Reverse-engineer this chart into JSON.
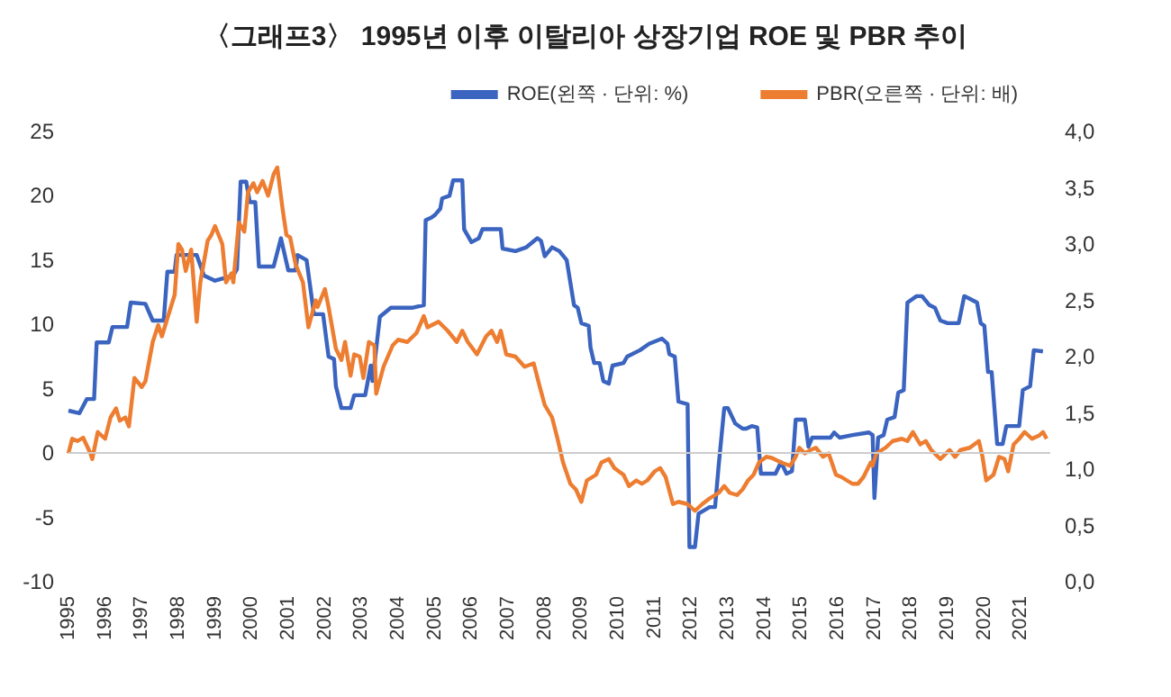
{
  "chart_data": {
    "type": "line",
    "title": "〈그래프3〉 1995년 이후 이탈리아 상장기업 ROE 및 PBR 추이",
    "xlim": [
      1995,
      2021.8
    ],
    "xticks": [
      1995,
      1996,
      1997,
      1998,
      1999,
      2000,
      2001,
      2002,
      2003,
      2004,
      2005,
      2006,
      2007,
      2008,
      2009,
      2010,
      2011,
      2012,
      2013,
      2014,
      2015,
      2016,
      2017,
      2018,
      2019,
      2020,
      2021
    ],
    "ylim": [
      -10,
      25
    ],
    "yticks": [
      -10,
      -5,
      0,
      5,
      10,
      15,
      20,
      25
    ],
    "y2lim": [
      0,
      4
    ],
    "y2ticks": [
      {
        "value": 0,
        "label": "0,0"
      },
      {
        "value": 0.5,
        "label": "0,5"
      },
      {
        "value": 1,
        "label": "1,0"
      },
      {
        "value": 1.5,
        "label": "1,5"
      },
      {
        "value": 2,
        "label": "2,0"
      },
      {
        "value": 2.5,
        "label": "2,5"
      },
      {
        "value": 3,
        "label": "3,0"
      },
      {
        "value": 3.5,
        "label": "3,5"
      },
      {
        "value": 4,
        "label": "4,0"
      }
    ],
    "grid": false,
    "legend": "top right",
    "marker": "none",
    "line_style": "solid",
    "ref_lines": [
      {
        "axis": "y",
        "value": 0,
        "color": "#cccccc"
      }
    ],
    "series": [
      {
        "name": "ROE(왼쪽 · 단위: %)",
        "color": "#3a64c0",
        "x": [
          1995.0,
          1995.3,
          1995.5,
          1995.7,
          1995.77,
          1996.1,
          1996.2,
          1996.6,
          1996.7,
          1997.1,
          1997.3,
          1997.6,
          1997.7,
          1997.9,
          1997.95,
          1998.5,
          1998.7,
          1999.0,
          1999.5,
          1999.6,
          1999.7,
          1999.85,
          1999.95,
          2000.1,
          2000.2,
          2000.6,
          2000.8,
          2001.0,
          2001.2,
          2001.25,
          2001.5,
          2001.7,
          2001.95,
          2002.1,
          2002.25,
          2002.3,
          2002.45,
          2002.7,
          2002.8,
          2003.1,
          2003.25,
          2003.3,
          2003.5,
          2003.8,
          2004.4,
          2004.7,
          2004.75,
          2004.9,
          2005.0,
          2005.15,
          2005.2,
          2005.4,
          2005.5,
          2005.75,
          2005.8,
          2006.0,
          2006.2,
          2006.3,
          2006.8,
          2006.85,
          2007.2,
          2007.5,
          2007.8,
          2007.9,
          2008.0,
          2008.2,
          2008.4,
          2008.6,
          2008.8,
          2008.9,
          2009.0,
          2009.2,
          2009.25,
          2009.35,
          2009.5,
          2009.6,
          2009.75,
          2009.85,
          2010.15,
          2010.25,
          2010.6,
          2010.85,
          2011.2,
          2011.35,
          2011.4,
          2011.55,
          2011.65,
          2011.9,
          2011.95,
          2012.1,
          2012.2,
          2012.5,
          2012.65,
          2012.75,
          2012.9,
          2013.0,
          2013.2,
          2013.4,
          2013.5,
          2013.65,
          2013.8,
          2013.9,
          2014.3,
          2014.45,
          2014.6,
          2014.75,
          2014.85,
          2015.1,
          2015.2,
          2015.3,
          2015.8,
          2015.9,
          2016.05,
          2016.4,
          2016.85,
          2016.95,
          2017.0,
          2017.1,
          2017.25,
          2017.35,
          2017.55,
          2017.65,
          2017.8,
          2017.9,
          2018.15,
          2018.3,
          2018.5,
          2018.65,
          2018.8,
          2019.0,
          2019.3,
          2019.45,
          2019.6,
          2019.8,
          2019.9,
          2020.0,
          2020.1,
          2020.2,
          2020.35,
          2020.5,
          2020.6,
          2020.95,
          2021.05,
          2021.25,
          2021.35,
          2021.6
        ],
        "values": [
          3.3,
          3.1,
          4.2,
          4.2,
          8.6,
          8.6,
          9.8,
          9.8,
          11.7,
          11.6,
          10.3,
          10.3,
          14.1,
          14.1,
          15.4,
          15.4,
          13.8,
          13.4,
          13.8,
          14.3,
          21.1,
          21.1,
          19.5,
          19.5,
          14.5,
          14.5,
          16.7,
          14.2,
          14.2,
          15.4,
          15.0,
          10.8,
          10.8,
          7.5,
          7.3,
          5.2,
          3.5,
          3.5,
          4.5,
          4.5,
          6.8,
          5.6,
          10.6,
          11.3,
          11.3,
          11.5,
          18.1,
          18.3,
          18.5,
          19.0,
          19.8,
          20.0,
          21.2,
          21.2,
          17.4,
          16.4,
          16.7,
          17.4,
          17.4,
          15.9,
          15.7,
          16.0,
          16.7,
          16.5,
          15.3,
          16.0,
          15.7,
          15.0,
          11.5,
          11.3,
          10.1,
          9.9,
          8.2,
          7.0,
          7.0,
          5.6,
          5.4,
          6.8,
          7.0,
          7.5,
          8.0,
          8.5,
          8.9,
          8.5,
          7.7,
          7.5,
          4.0,
          3.8,
          -7.3,
          -7.3,
          -4.7,
          -4.2,
          -4.2,
          -0.9,
          3.5,
          3.5,
          2.3,
          1.9,
          1.9,
          2.1,
          2.0,
          -1.6,
          -1.6,
          -0.7,
          -1.6,
          -1.4,
          2.6,
          2.6,
          0.5,
          1.2,
          1.2,
          1.6,
          1.2,
          1.4,
          1.6,
          1.4,
          -3.5,
          1.2,
          1.4,
          2.6,
          2.8,
          4.7,
          4.9,
          11.7,
          12.2,
          12.2,
          11.5,
          11.3,
          10.3,
          10.1,
          10.1,
          12.2,
          12.0,
          11.7,
          10.1,
          9.9,
          6.3,
          6.3,
          0.7,
          0.7,
          2.1,
          2.1,
          4.9,
          5.2,
          8.0,
          7.9
        ]
      },
      {
        "name": "PBR(오른쪽 · 단위: 배)",
        "color": "#ed7d31",
        "axis": "y2",
        "x": [
          1995.0,
          1995.1,
          1995.25,
          1995.4,
          1995.6,
          1995.65,
          1995.8,
          1996.0,
          1996.15,
          1996.3,
          1996.4,
          1996.55,
          1996.65,
          1996.8,
          1997.0,
          1997.1,
          1997.3,
          1997.45,
          1997.55,
          1997.7,
          1997.9,
          1998.0,
          1998.1,
          1998.2,
          1998.35,
          1998.5,
          1998.6,
          1998.8,
          1998.9,
          1999.0,
          1999.2,
          1999.3,
          1999.45,
          1999.5,
          1999.65,
          1999.8,
          1999.9,
          2000.05,
          2000.15,
          2000.3,
          2000.45,
          2000.6,
          2000.7,
          2000.85,
          2000.95,
          2001.05,
          2001.2,
          2001.4,
          2001.55,
          2001.75,
          2001.8,
          2002.0,
          2002.1,
          2002.3,
          2002.45,
          2002.55,
          2002.7,
          2002.8,
          2002.95,
          2003.05,
          2003.2,
          2003.35,
          2003.4,
          2003.6,
          2003.85,
          2004.0,
          2004.25,
          2004.5,
          2004.7,
          2004.8,
          2005.1,
          2005.35,
          2005.6,
          2005.75,
          2005.9,
          2006.15,
          2006.4,
          2006.55,
          2006.7,
          2006.8,
          2006.95,
          2007.2,
          2007.45,
          2007.7,
          2007.85,
          2008.0,
          2008.2,
          2008.35,
          2008.5,
          2008.7,
          2008.85,
          2009.0,
          2009.15,
          2009.4,
          2009.55,
          2009.75,
          2009.9,
          2010.15,
          2010.3,
          2010.5,
          2010.65,
          2010.8,
          2011.0,
          2011.15,
          2011.3,
          2011.5,
          2011.65,
          2011.9,
          2012.1,
          2012.3,
          2012.5,
          2012.75,
          2012.9,
          2013.05,
          2013.25,
          2013.4,
          2013.55,
          2013.7,
          2013.85,
          2014.05,
          2014.2,
          2014.45,
          2014.7,
          2014.85,
          2014.95,
          2015.1,
          2015.25,
          2015.4,
          2015.6,
          2015.75,
          2015.95,
          2016.1,
          2016.25,
          2016.4,
          2016.55,
          2016.7,
          2016.9,
          2016.95,
          2017.05,
          2017.3,
          2017.5,
          2017.75,
          2017.9,
          2018.05,
          2018.25,
          2018.4,
          2018.55,
          2018.8,
          2019.05,
          2019.2,
          2019.35,
          2019.6,
          2019.85,
          2019.95,
          2020.05,
          2020.25,
          2020.4,
          2020.55,
          2020.65,
          2020.8,
          2020.95,
          2021.1,
          2021.3,
          2021.5,
          2021.6,
          2021.7
        ],
        "values": [
          1.14,
          1.27,
          1.25,
          1.28,
          1.14,
          1.09,
          1.33,
          1.27,
          1.46,
          1.54,
          1.43,
          1.46,
          1.38,
          1.81,
          1.73,
          1.78,
          2.13,
          2.28,
          2.18,
          2.34,
          2.55,
          3.0,
          2.95,
          2.76,
          2.95,
          2.31,
          2.66,
          3.03,
          3.08,
          3.16,
          3.0,
          2.66,
          2.74,
          2.66,
          3.19,
          3.11,
          3.46,
          3.54,
          3.46,
          3.56,
          3.43,
          3.62,
          3.68,
          3.3,
          3.08,
          3.06,
          2.82,
          2.66,
          2.26,
          2.5,
          2.44,
          2.6,
          2.44,
          2.07,
          1.97,
          2.13,
          1.83,
          2.02,
          2.0,
          1.81,
          2.13,
          2.1,
          1.67,
          1.91,
          2.1,
          2.15,
          2.13,
          2.21,
          2.36,
          2.26,
          2.31,
          2.23,
          2.13,
          2.23,
          2.13,
          2.02,
          2.18,
          2.23,
          2.13,
          2.23,
          2.02,
          2.0,
          1.91,
          1.94,
          1.75,
          1.57,
          1.46,
          1.27,
          1.06,
          0.87,
          0.82,
          0.71,
          0.9,
          0.95,
          1.06,
          1.09,
          1.01,
          0.95,
          0.85,
          0.9,
          0.87,
          0.9,
          0.98,
          1.01,
          0.93,
          0.69,
          0.71,
          0.69,
          0.63,
          0.69,
          0.74,
          0.79,
          0.85,
          0.79,
          0.77,
          0.82,
          0.9,
          0.95,
          1.06,
          1.11,
          1.1,
          1.06,
          1.03,
          1.11,
          1.19,
          1.14,
          1.17,
          1.19,
          1.11,
          1.14,
          0.95,
          0.93,
          0.9,
          0.87,
          0.87,
          0.93,
          1.06,
          1.03,
          1.14,
          1.19,
          1.25,
          1.27,
          1.25,
          1.33,
          1.22,
          1.25,
          1.17,
          1.09,
          1.17,
          1.11,
          1.17,
          1.19,
          1.25,
          1.11,
          0.9,
          0.95,
          1.11,
          1.09,
          0.98,
          1.22,
          1.27,
          1.33,
          1.27,
          1.3,
          1.33,
          1.27
        ]
      }
    ]
  }
}
